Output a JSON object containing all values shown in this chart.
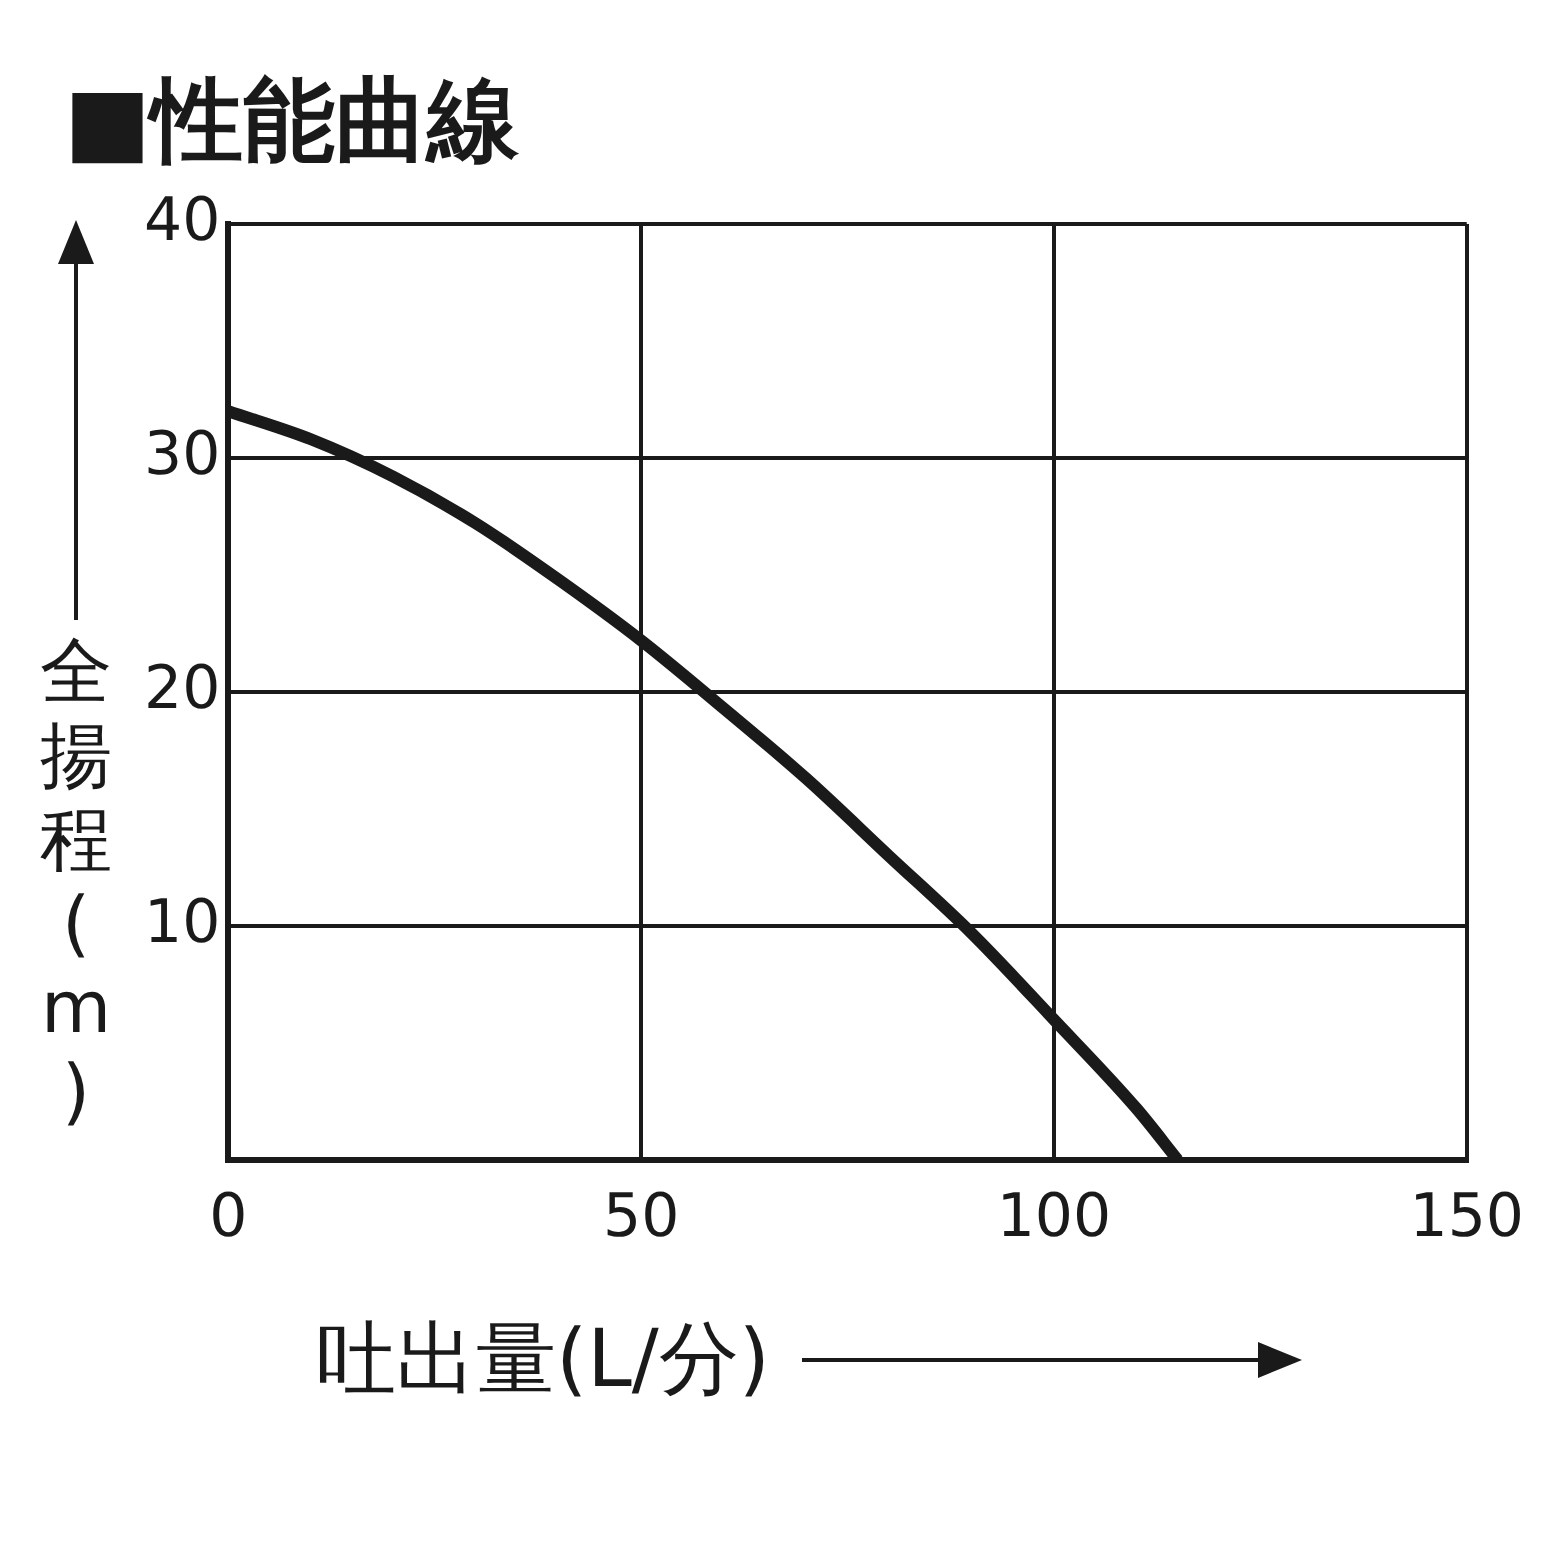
{
  "chart_data": {
    "type": "line",
    "title": "■性能曲線",
    "xlabel": "吐出量(L/分)",
    "ylabel": "全揚程(m)",
    "x": [
      0,
      10,
      20,
      30,
      40,
      50,
      60,
      70,
      80,
      90,
      100,
      110,
      115
    ],
    "series": [
      {
        "color": "#1a1a1a",
        "values": [
          32,
          30.8,
          29.2,
          27.2,
          24.8,
          22.2,
          19.3,
          16.3,
          13,
          9.7,
          6,
          2.2,
          0
        ]
      }
    ],
    "xlim": [
      0,
      150
    ],
    "xticks": [
      0,
      50,
      100,
      150
    ],
    "ylim": [
      0,
      40
    ],
    "yticks": [
      {
        "value": 0,
        "label": null
      },
      10,
      20,
      30,
      40
    ],
    "grid": true,
    "legend": false,
    "marker": "none",
    "line_style": "solid"
  }
}
